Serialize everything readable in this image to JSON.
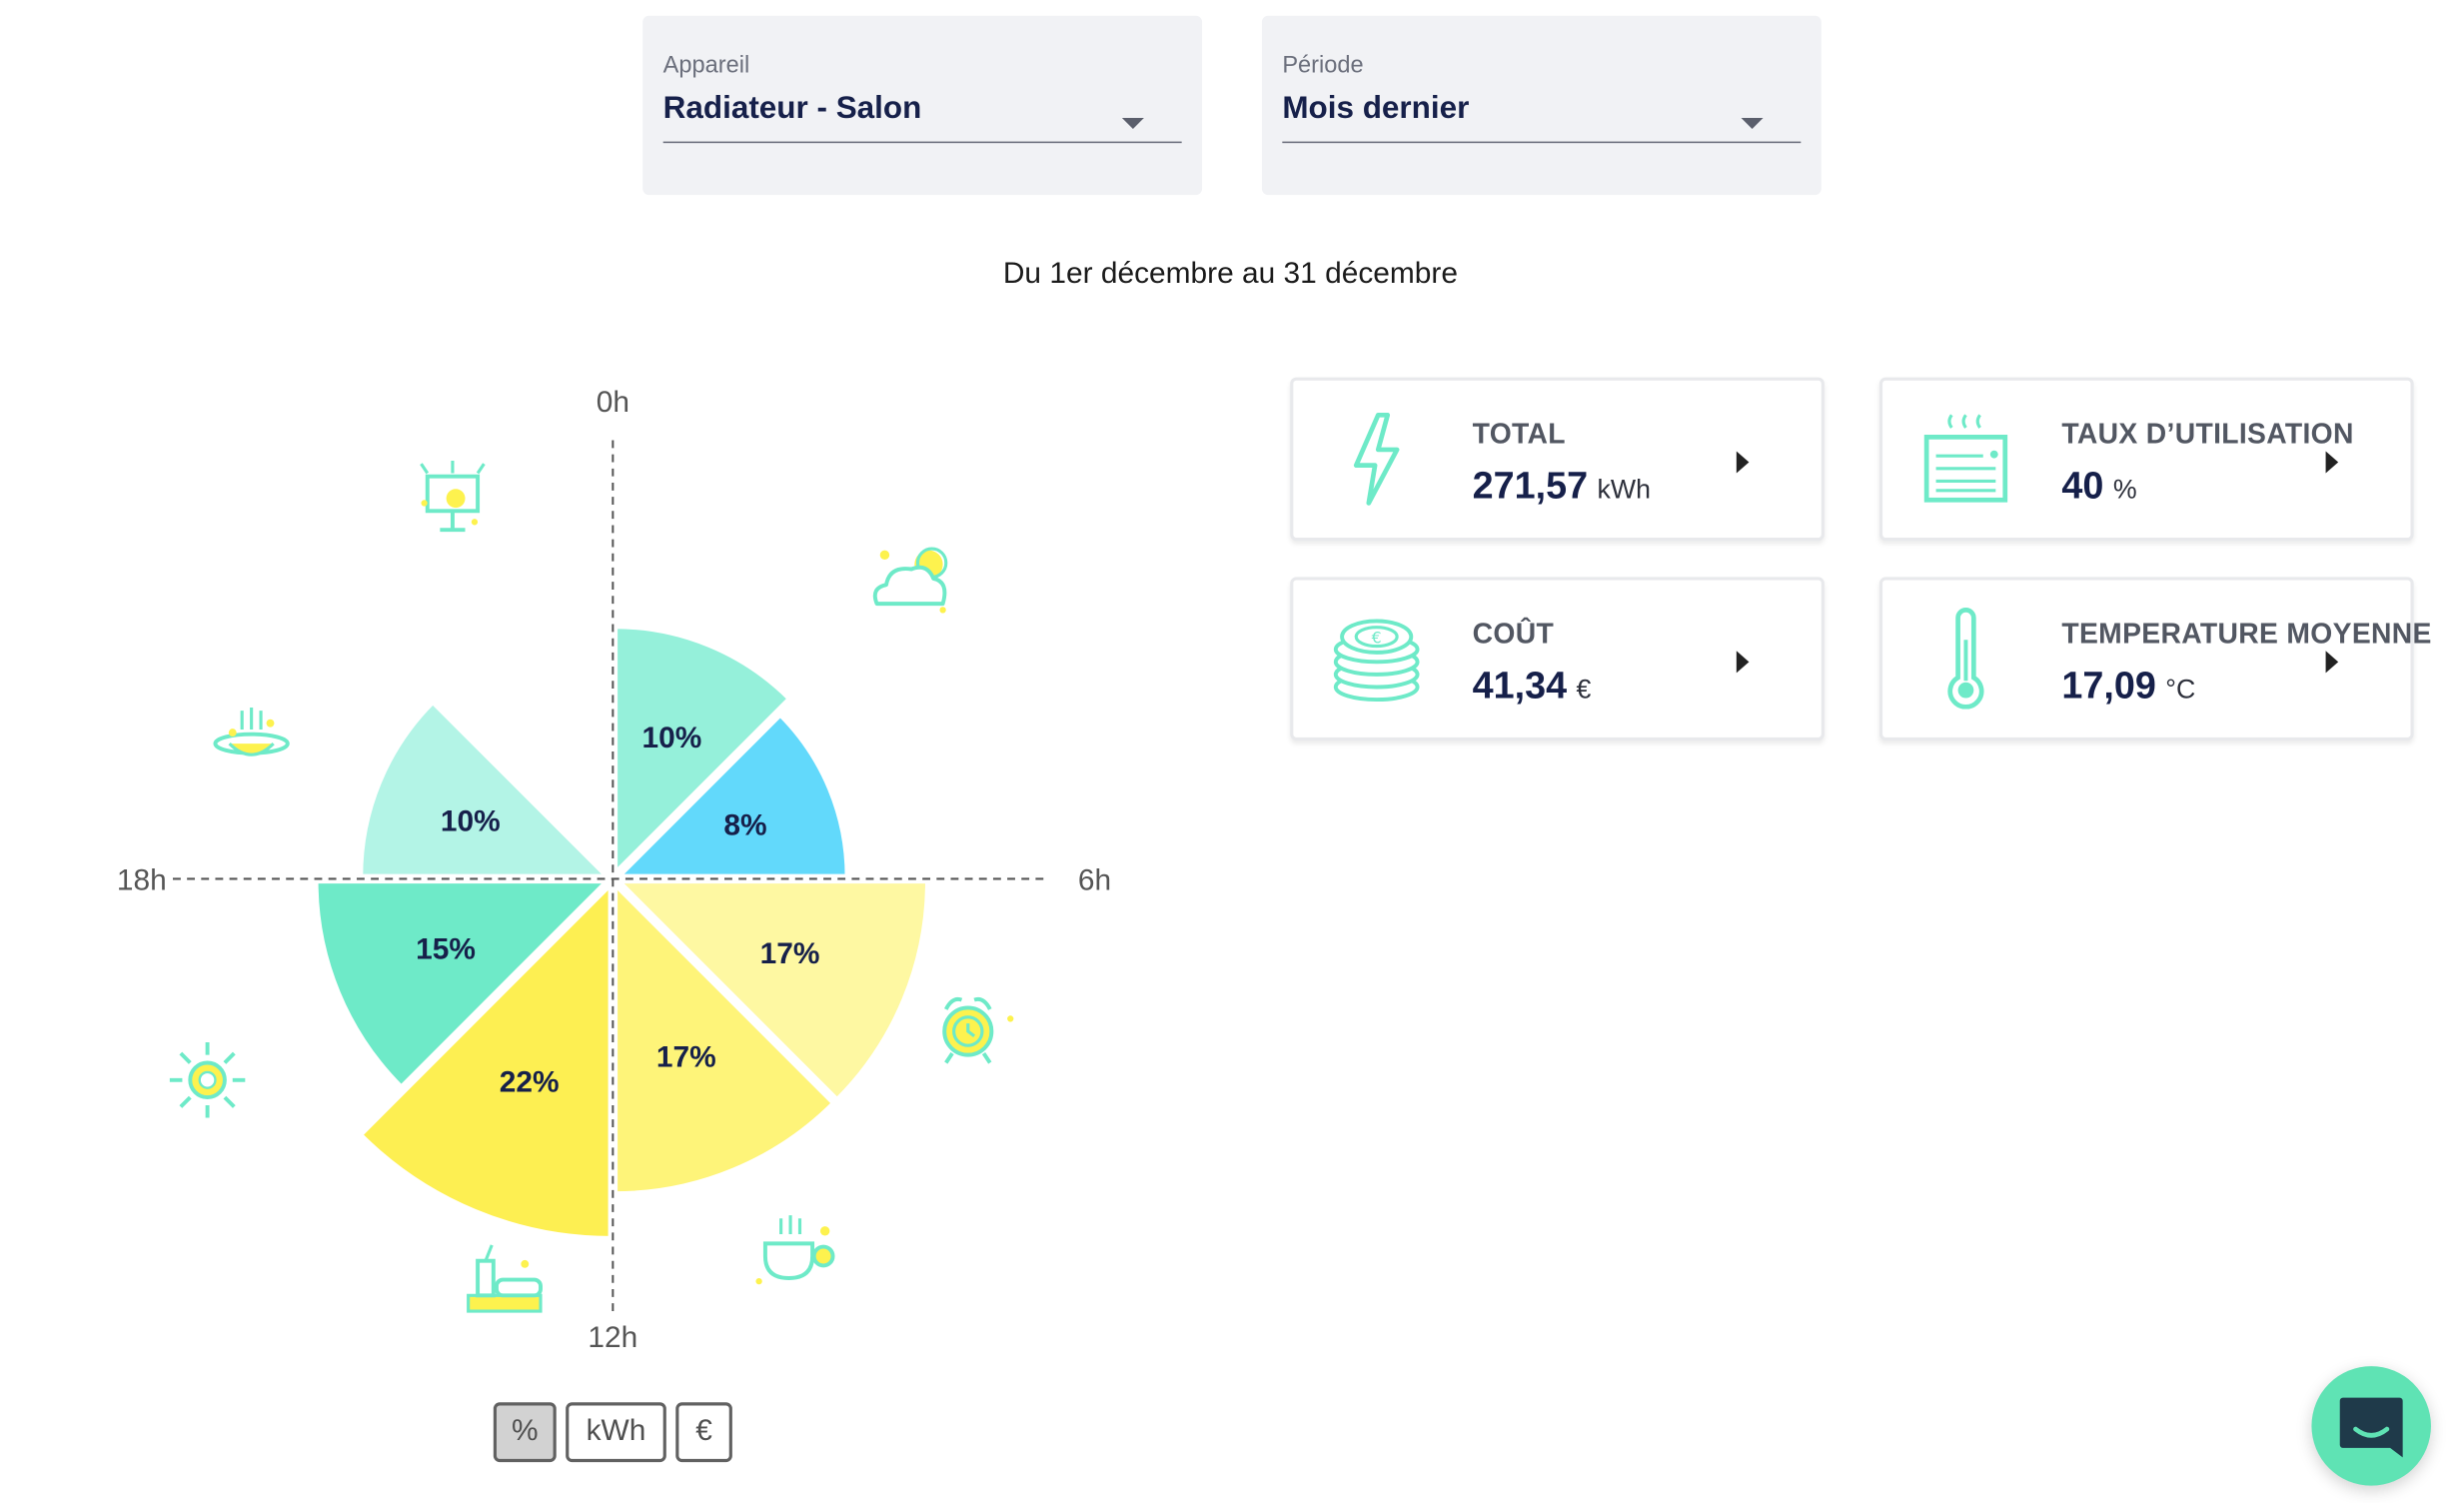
{
  "filters": {
    "device": {
      "label": "Appareil",
      "value": "Radiateur - Salon"
    },
    "period": {
      "label": "Période",
      "value": "Mois dernier"
    }
  },
  "period_text": "Du 1er décembre au 31 décembre",
  "chart_data": {
    "type": "pie",
    "axis_labels": [
      "0h",
      "6h",
      "12h",
      "18h"
    ],
    "slices": [
      {
        "range": "0h-3h",
        "value": 10,
        "label": "10%",
        "icon": "cloud-moon-icon",
        "color": "#95f0da"
      },
      {
        "range": "3h-6h",
        "value": 8,
        "label": "8%",
        "icon": "alarm-clock-icon",
        "color": "#62d9fb"
      },
      {
        "range": "6h-9h",
        "value": 17,
        "label": "17%",
        "icon": "coffee-cup-icon",
        "color": "#fef8a2"
      },
      {
        "range": "9h-12h",
        "value": 17,
        "label": "17%",
        "icon": "lunch-tray-icon",
        "color": "#fef479"
      },
      {
        "range": "12h-15h",
        "value": 22,
        "label": "22%",
        "icon": "sun-icon",
        "color": "#fdef52"
      },
      {
        "range": "15h-18h",
        "value": 15,
        "label": "15%",
        "icon": "dinner-plate-icon",
        "color": "#6eeac8"
      },
      {
        "range": "18h-21h",
        "value": 10,
        "label": "10%",
        "icon": "tv-icon",
        "color": "#b3f4e6"
      }
    ]
  },
  "unit_toggle": {
    "options": [
      "%",
      "kWh",
      "€"
    ],
    "active": "%"
  },
  "cards": [
    {
      "title": "TOTAL",
      "value": "271,57",
      "unit": "kWh",
      "icon": "lightning-icon"
    },
    {
      "title": "TAUX D’UTILISATION",
      "value": "40",
      "unit": "%",
      "icon": "radiator-icon"
    },
    {
      "title": "COÛT",
      "value": "41,34",
      "unit": "€",
      "icon": "coins-icon"
    },
    {
      "title": "TEMPERATURE MOYENNE",
      "value": "17,09",
      "unit": "°C",
      "icon": "thermometer-icon"
    }
  ],
  "colors": {
    "accent": "#5fe3b4",
    "text_dark": "#16204a"
  }
}
